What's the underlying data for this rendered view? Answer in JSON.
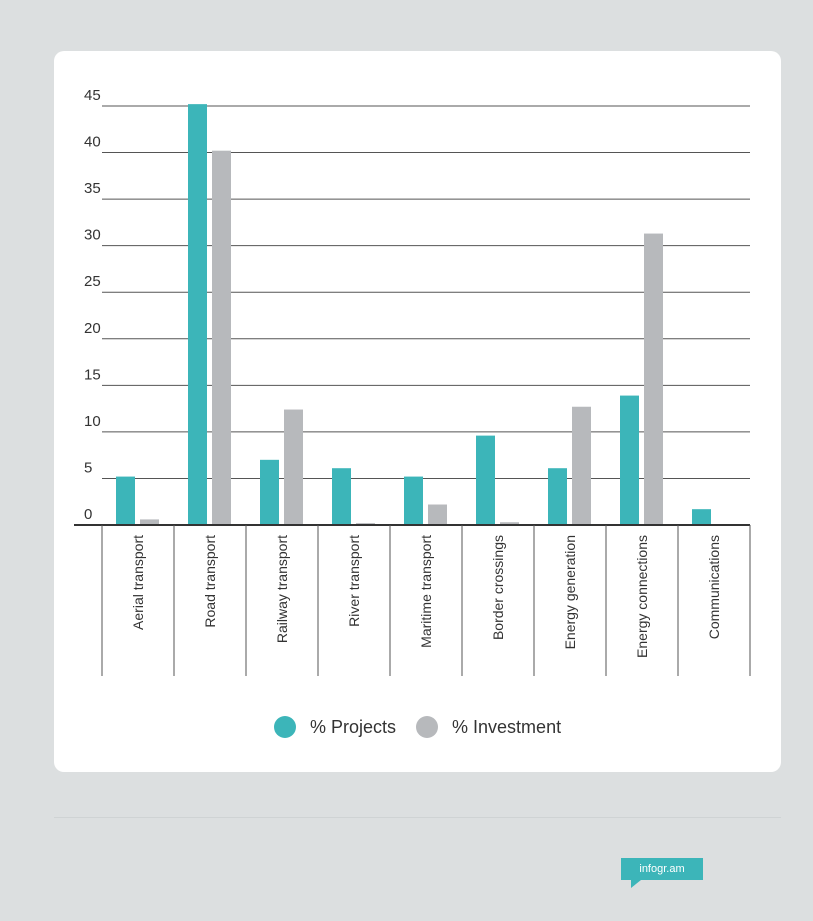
{
  "chart_data": {
    "type": "bar",
    "categories": [
      "Aerial transport",
      "Road transport",
      "Railway transport",
      "River transport",
      "Maritime transport",
      "Border crossings",
      "Energy generation",
      "Energy connections",
      "Communications"
    ],
    "series": [
      {
        "name": "% Projects",
        "color": "#3cb5b9",
        "values": [
          5.2,
          45.2,
          7.0,
          6.1,
          5.2,
          9.6,
          6.1,
          13.9,
          1.7
        ]
      },
      {
        "name": "% Investment",
        "color": "#b7b9bc",
        "values": [
          0.6,
          40.2,
          12.4,
          0.2,
          2.2,
          0.3,
          12.7,
          31.3,
          0.0
        ]
      }
    ],
    "yticks": [
      "0",
      "5",
      "10",
      "15",
      "20",
      "25",
      "30",
      "35",
      "40",
      "45"
    ],
    "ylim": [
      0,
      45
    ],
    "grid": true,
    "legend_position": "bottom-center",
    "title": "",
    "xlabel": "",
    "ylabel": ""
  },
  "legend": {
    "projects_label": "% Projects",
    "investment_label": "% Investment"
  },
  "footer": {
    "badge_label": "infogr.am"
  },
  "colors": {
    "background": "#dcdfe0",
    "card": "#ffffff",
    "projects": "#3cb5b9",
    "investment": "#b7b9bc",
    "grid": "#555555"
  }
}
